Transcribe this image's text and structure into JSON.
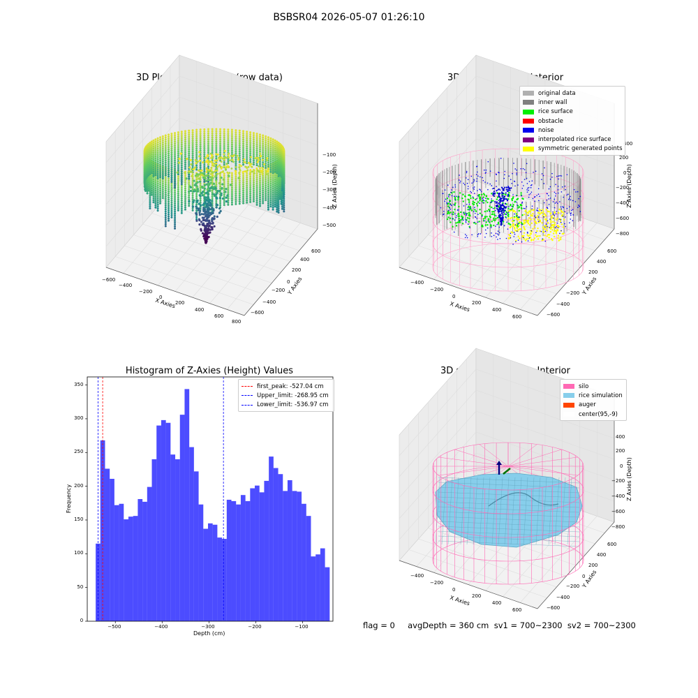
{
  "suptitle": "BSBSR04 2026-05-07 01:26:10",
  "panels": {
    "raw": {
      "title": "3D Plot of Silo Interior(row data)",
      "xlabel": "X Axies",
      "ylabel": "Y Axies",
      "zlabel": "Z Axies (Depth)",
      "xticks": [
        "−600",
        "−400",
        "−200",
        "0",
        "200",
        "400",
        "600",
        "800"
      ],
      "yticks": [
        "−600",
        "−400",
        "−200",
        "0",
        "200",
        "400",
        "600"
      ],
      "zticks": [
        "−100",
        "−200",
        "−300",
        "−400",
        "−500"
      ]
    },
    "classify": {
      "title": "3D classify of Silo Interior",
      "xlabel": "X Axies",
      "ylabel": "Y Axies",
      "zlabel": "Z Axies (Depth)",
      "xticks": [
        "−400",
        "−200",
        "0",
        "200",
        "400",
        "600"
      ],
      "yticks": [
        "−600",
        "−400",
        "−200",
        "0",
        "200",
        "400",
        "600"
      ],
      "zticks": [
        "400",
        "200",
        "0",
        "−200",
        "−400",
        "−600",
        "−800"
      ],
      "legend": [
        {
          "label": "original data",
          "color": "#b0b0b0"
        },
        {
          "label": "inner wall",
          "color": "#808080"
        },
        {
          "label": "rice surface",
          "color": "#00ee00"
        },
        {
          "label": "obstacle",
          "color": "#ff0000"
        },
        {
          "label": "noise",
          "color": "#0000ee"
        },
        {
          "label": "interpolated rice surface",
          "color": "#800080"
        },
        {
          "label": "symmetric generated points",
          "color": "#ffff00"
        }
      ]
    },
    "simulation": {
      "title": "3D simulation of Silo Interior",
      "xlabel": "X Axies",
      "ylabel": "Y Axies",
      "zlabel": "Z Axies (Depth)",
      "xticks": [
        "−400",
        "−200",
        "0",
        "200",
        "400",
        "600"
      ],
      "yticks": [
        "−600",
        "−400",
        "−200",
        "0",
        "200",
        "400",
        "600"
      ],
      "zticks": [
        "400",
        "200",
        "0",
        "−200",
        "−400",
        "−600",
        "−800"
      ],
      "legend": [
        {
          "label": "silo",
          "color": "#ff69b4"
        },
        {
          "label": "rice simulation",
          "color": "#87ceeb"
        },
        {
          "label": "auger",
          "color": "#ff4500"
        },
        {
          "label": "center(95,-9)",
          "color": "#ffffff"
        }
      ]
    }
  },
  "chart_data": [
    {
      "type": "bar",
      "title": "Histogram of Z-Axies (Height) Values",
      "xlabel": "Depth (cm)",
      "ylabel": "Frequency",
      "xlim": [
        -560,
        -35
      ],
      "ylim": [
        0,
        362
      ],
      "bin_start": -542,
      "bin_width": 10,
      "values": [
        115,
        268,
        226,
        211,
        172,
        174,
        151,
        155,
        156,
        181,
        177,
        199,
        240,
        290,
        298,
        294,
        247,
        240,
        306,
        344,
        258,
        222,
        173,
        137,
        145,
        143,
        124,
        122,
        180,
        178,
        173,
        187,
        178,
        197,
        201,
        191,
        208,
        244,
        227,
        218,
        193,
        209,
        193,
        192,
        174,
        156,
        96,
        99,
        108,
        80
      ],
      "bar_color": "#0000ff",
      "xticks": [
        -500,
        -400,
        -300,
        -200,
        -100
      ],
      "xtick_labels": [
        "−500",
        "−400",
        "−300",
        "−200",
        "−100"
      ],
      "yticks": [
        0,
        50,
        100,
        150,
        200,
        250,
        300,
        350
      ],
      "ytick_labels": [
        "0",
        "50",
        "100",
        "150",
        "200",
        "250",
        "300",
        "350"
      ],
      "vlines": [
        {
          "label": "first_peak: -527.04 cm",
          "x": -527.04,
          "color": "#ff0000"
        },
        {
          "label": "Upper_limit: -268.95 cm",
          "x": -268.95,
          "color": "#0000ff"
        },
        {
          "label": "Lower_limit: -536.97 cm",
          "x": -536.97,
          "color": "#0000ff"
        }
      ],
      "legend_position": "top-right"
    }
  ],
  "status": "flag = 0     avgDepth = 360 cm  sv1 = 700~2300  sv2 = 700~2300"
}
